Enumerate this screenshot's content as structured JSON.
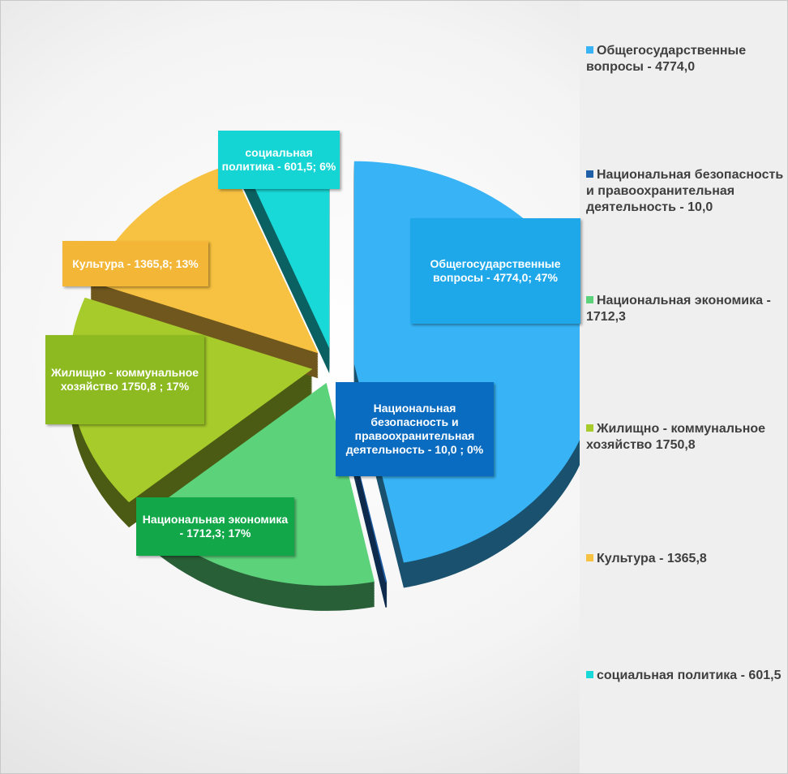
{
  "chart_data": {
    "type": "pie",
    "categories": [
      "Общегосударственные вопросы - 4774,0",
      "Национальная безопасность и правоохранительная деятельность - 10,0",
      "Национальная экономика - 1712,3",
      "Жилищно - коммунальное хозяйство 1750,8",
      "Культура - 1365,8",
      "социальная политика - 601,5"
    ],
    "values": [
      4774.0,
      10.0,
      1712.3,
      1750.8,
      1365.8,
      601.5
    ],
    "value_labels": [
      "Общегосударственные вопросы - 4774,0; 47%",
      "Национальная безопасность и правоохранительная деятельность - 10,0 ; 0%",
      "Национальная экономика - 1712,3; 17%",
      "Жилищно - коммунальное хозяйство 1750,8 ; 17%",
      "Культура - 1365,8; 13%",
      "социальная политика - 601,5; 6%"
    ],
    "colors": [
      "#38b4f6",
      "#1f5fa8",
      "#5cd27a",
      "#a6cb2b",
      "#f7c141",
      "#18d8d8"
    ],
    "label_colors": [
      "#1ea8ea",
      "#0a6cc0",
      "#12a84a",
      "#8cba20",
      "#f3b636",
      "#14d4d4"
    ],
    "legend": "right"
  }
}
